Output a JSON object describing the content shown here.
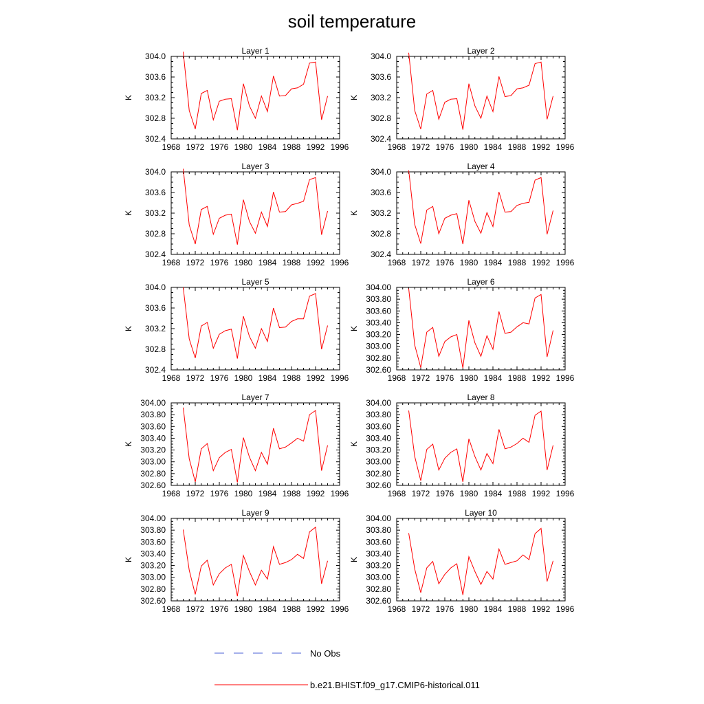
{
  "figure_title": "soil temperature",
  "colors": {
    "model_line": "#ff0000",
    "obs_line": "#4a5fd6",
    "axes": "#000000"
  },
  "legend": {
    "obs_label": "No Obs",
    "model_label": "b.e21.BHIST.f09_g17.CMIP6-historical.011"
  },
  "chart_data": [
    {
      "type": "line",
      "title": "Layer 1",
      "ylabel": "K",
      "xlim": [
        1968,
        1996
      ],
      "x_ticks": [
        "1968",
        "1972",
        "1976",
        "1980",
        "1984",
        "1988",
        "1992",
        "1996"
      ],
      "ylim": [
        302.4,
        304.0
      ],
      "y_ticks": [
        "302.4",
        "302.8",
        "303.2",
        "303.6",
        "304.0"
      ],
      "x": [
        1970,
        1971,
        1972,
        1973,
        1974,
        1975,
        1976,
        1977,
        1978,
        1979,
        1980,
        1981,
        1982,
        1983,
        1984,
        1985,
        1986,
        1987,
        1988,
        1989,
        1990,
        1991,
        1992,
        1993,
        1994
      ],
      "series": [
        {
          "name": "b.e21.BHIST.f09_g17.CMIP6-historical.011",
          "values": [
            304.09,
            302.95,
            302.59,
            303.28,
            303.34,
            302.77,
            303.13,
            303.17,
            303.18,
            302.57,
            303.47,
            303.04,
            302.8,
            303.23,
            302.93,
            303.62,
            303.23,
            303.24,
            303.37,
            303.39,
            303.46,
            303.87,
            303.89,
            302.77,
            303.23
          ]
        }
      ]
    },
    {
      "type": "line",
      "title": "Layer 2",
      "ylabel": "K",
      "xlim": [
        1968,
        1996
      ],
      "x_ticks": [
        "1968",
        "1972",
        "1976",
        "1980",
        "1984",
        "1988",
        "1992",
        "1996"
      ],
      "ylim": [
        302.4,
        304.0
      ],
      "y_ticks": [
        "302.4",
        "302.8",
        "303.2",
        "303.6",
        "304.0"
      ],
      "x": [
        1970,
        1971,
        1972,
        1973,
        1974,
        1975,
        1976,
        1977,
        1978,
        1979,
        1980,
        1981,
        1982,
        1983,
        1984,
        1985,
        1986,
        1987,
        1988,
        1989,
        1990,
        1991,
        1992,
        1993,
        1994
      ],
      "series": [
        {
          "name": "b.e21.BHIST.f09_g17.CMIP6-historical.011",
          "values": [
            304.07,
            302.95,
            302.59,
            303.27,
            303.34,
            302.78,
            303.11,
            303.17,
            303.18,
            302.58,
            303.47,
            303.04,
            302.8,
            303.23,
            302.93,
            303.61,
            303.22,
            303.24,
            303.37,
            303.39,
            303.44,
            303.86,
            303.89,
            302.78,
            303.23
          ]
        }
      ]
    },
    {
      "type": "line",
      "title": "Layer 3",
      "ylabel": "K",
      "xlim": [
        1968,
        1996
      ],
      "x_ticks": [
        "1968",
        "1972",
        "1976",
        "1980",
        "1984",
        "1988",
        "1992",
        "1996"
      ],
      "ylim": [
        302.4,
        304.0
      ],
      "y_ticks": [
        "302.4",
        "302.8",
        "303.2",
        "303.6",
        "304.0"
      ],
      "x": [
        1970,
        1971,
        1972,
        1973,
        1974,
        1975,
        1976,
        1977,
        1978,
        1979,
        1980,
        1981,
        1982,
        1983,
        1984,
        1985,
        1986,
        1987,
        1988,
        1989,
        1990,
        1991,
        1992,
        1993,
        1994
      ],
      "series": [
        {
          "name": "b.e21.BHIST.f09_g17.CMIP6-historical.011",
          "values": [
            304.06,
            302.97,
            302.6,
            303.27,
            303.33,
            302.79,
            303.1,
            303.16,
            303.18,
            302.59,
            303.46,
            303.04,
            302.81,
            303.22,
            302.94,
            303.61,
            303.22,
            303.23,
            303.36,
            303.39,
            303.43,
            303.85,
            303.89,
            302.78,
            303.24
          ]
        }
      ]
    },
    {
      "type": "line",
      "title": "Layer 4",
      "ylabel": "K",
      "xlim": [
        1968,
        1996
      ],
      "x_ticks": [
        "1968",
        "1972",
        "1976",
        "1980",
        "1984",
        "1988",
        "1992",
        "1996"
      ],
      "ylim": [
        302.4,
        304.0
      ],
      "y_ticks": [
        "302.4",
        "302.8",
        "303.2",
        "303.6",
        "304.0"
      ],
      "x": [
        1970,
        1971,
        1972,
        1973,
        1974,
        1975,
        1976,
        1977,
        1978,
        1979,
        1980,
        1981,
        1982,
        1983,
        1984,
        1985,
        1986,
        1987,
        1988,
        1989,
        1990,
        1991,
        1992,
        1993,
        1994
      ],
      "series": [
        {
          "name": "b.e21.BHIST.f09_g17.CMIP6-historical.011",
          "values": [
            304.03,
            302.98,
            302.61,
            303.26,
            303.33,
            302.8,
            303.1,
            303.16,
            303.19,
            302.6,
            303.45,
            303.04,
            302.81,
            303.21,
            302.94,
            303.61,
            303.22,
            303.23,
            303.35,
            303.39,
            303.41,
            303.84,
            303.89,
            302.79,
            303.25
          ]
        }
      ]
    },
    {
      "type": "line",
      "title": "Layer 5",
      "ylabel": "K",
      "xlim": [
        1968,
        1996
      ],
      "x_ticks": [
        "1968",
        "1972",
        "1976",
        "1980",
        "1984",
        "1988",
        "1992",
        "1996"
      ],
      "ylim": [
        302.4,
        304.0
      ],
      "y_ticks": [
        "302.4",
        "302.8",
        "303.2",
        "303.6",
        "304.0"
      ],
      "x": [
        1970,
        1971,
        1972,
        1973,
        1974,
        1975,
        1976,
        1977,
        1978,
        1979,
        1980,
        1981,
        1982,
        1983,
        1984,
        1985,
        1986,
        1987,
        1988,
        1989,
        1990,
        1991,
        1992,
        1993,
        1994
      ],
      "series": [
        {
          "name": "b.e21.BHIST.f09_g17.CMIP6-historical.011",
          "values": [
            304.0,
            303.0,
            302.63,
            303.25,
            303.32,
            302.82,
            303.09,
            303.16,
            303.19,
            302.62,
            303.44,
            303.05,
            302.82,
            303.2,
            302.95,
            303.6,
            303.22,
            303.23,
            303.34,
            303.39,
            303.39,
            303.83,
            303.88,
            302.8,
            303.26
          ]
        }
      ]
    },
    {
      "type": "line",
      "title": "Layer 6",
      "ylabel": "K",
      "xlim": [
        1968,
        1996
      ],
      "x_ticks": [
        "1968",
        "1972",
        "1976",
        "1980",
        "1984",
        "1988",
        "1992",
        "1996"
      ],
      "ylim": [
        302.6,
        304.0
      ],
      "y_ticks": [
        "302.60",
        "302.80",
        "303.00",
        "303.20",
        "303.40",
        "303.60",
        "303.80",
        "304.00"
      ],
      "x": [
        1970,
        1971,
        1972,
        1973,
        1974,
        1975,
        1976,
        1977,
        1978,
        1979,
        1980,
        1981,
        1982,
        1983,
        1984,
        1985,
        1986,
        1987,
        1988,
        1989,
        1990,
        1991,
        1992,
        1993,
        1994
      ],
      "series": [
        {
          "name": "b.e21.BHIST.f09_g17.CMIP6-historical.011",
          "values": [
            303.98,
            303.02,
            302.64,
            303.24,
            303.32,
            302.83,
            303.08,
            303.16,
            303.2,
            302.63,
            303.44,
            303.06,
            302.83,
            303.18,
            302.95,
            303.59,
            303.22,
            303.24,
            303.33,
            303.4,
            303.38,
            303.82,
            303.88,
            302.82,
            303.27
          ]
        }
      ]
    },
    {
      "type": "line",
      "title": "Layer 7",
      "ylabel": "K",
      "xlim": [
        1968,
        1996
      ],
      "x_ticks": [
        "1968",
        "1972",
        "1976",
        "1980",
        "1984",
        "1988",
        "1992",
        "1996"
      ],
      "ylim": [
        302.6,
        304.0
      ],
      "y_ticks": [
        "302.60",
        "302.80",
        "303.00",
        "303.20",
        "303.40",
        "303.60",
        "303.80",
        "304.00"
      ],
      "x": [
        1970,
        1971,
        1972,
        1973,
        1974,
        1975,
        1976,
        1977,
        1978,
        1979,
        1980,
        1981,
        1982,
        1983,
        1984,
        1985,
        1986,
        1987,
        1988,
        1989,
        1990,
        1991,
        1992,
        1993,
        1994
      ],
      "series": [
        {
          "name": "b.e21.BHIST.f09_g17.CMIP6-historical.011",
          "values": [
            303.92,
            303.05,
            302.66,
            303.22,
            303.31,
            302.85,
            303.07,
            303.16,
            303.21,
            302.65,
            303.41,
            303.08,
            302.85,
            303.16,
            302.96,
            303.57,
            303.22,
            303.25,
            303.32,
            303.4,
            303.35,
            303.8,
            303.87,
            302.85,
            303.28
          ]
        }
      ]
    },
    {
      "type": "line",
      "title": "Layer 8",
      "ylabel": "K",
      "xlim": [
        1968,
        1996
      ],
      "x_ticks": [
        "1968",
        "1972",
        "1976",
        "1980",
        "1984",
        "1988",
        "1992",
        "1996"
      ],
      "ylim": [
        302.6,
        304.0
      ],
      "y_ticks": [
        "302.60",
        "302.80",
        "303.00",
        "303.20",
        "303.40",
        "303.60",
        "303.80",
        "304.00"
      ],
      "x": [
        1970,
        1971,
        1972,
        1973,
        1974,
        1975,
        1976,
        1977,
        1978,
        1979,
        1980,
        1981,
        1982,
        1983,
        1984,
        1985,
        1986,
        1987,
        1988,
        1989,
        1990,
        1991,
        1992,
        1993,
        1994
      ],
      "series": [
        {
          "name": "b.e21.BHIST.f09_g17.CMIP6-historical.011",
          "values": [
            303.87,
            303.09,
            302.68,
            303.21,
            303.3,
            302.86,
            303.06,
            303.16,
            303.22,
            302.66,
            303.39,
            303.09,
            302.86,
            303.14,
            302.97,
            303.55,
            303.22,
            303.25,
            303.31,
            303.4,
            303.33,
            303.79,
            303.86,
            302.86,
            303.28
          ]
        }
      ]
    },
    {
      "type": "line",
      "title": "Layer 9",
      "ylabel": "K",
      "xlim": [
        1968,
        1996
      ],
      "x_ticks": [
        "1968",
        "1972",
        "1976",
        "1980",
        "1984",
        "1988",
        "1992",
        "1996"
      ],
      "ylim": [
        302.6,
        304.0
      ],
      "y_ticks": [
        "302.60",
        "302.80",
        "303.00",
        "303.20",
        "303.40",
        "303.60",
        "303.80",
        "304.00"
      ],
      "x": [
        1970,
        1971,
        1972,
        1973,
        1974,
        1975,
        1976,
        1977,
        1978,
        1979,
        1980,
        1981,
        1982,
        1983,
        1984,
        1985,
        1986,
        1987,
        1988,
        1989,
        1990,
        1991,
        1992,
        1993,
        1994
      ],
      "series": [
        {
          "name": "b.e21.BHIST.f09_g17.CMIP6-historical.011",
          "values": [
            303.81,
            303.12,
            302.71,
            303.19,
            303.29,
            302.87,
            303.06,
            303.16,
            303.22,
            302.68,
            303.37,
            303.1,
            302.87,
            303.12,
            302.97,
            303.52,
            303.22,
            303.25,
            303.3,
            303.39,
            303.32,
            303.77,
            303.85,
            302.89,
            303.28
          ]
        }
      ]
    },
    {
      "type": "line",
      "title": "Layer 10",
      "ylabel": "K",
      "xlim": [
        1968,
        1996
      ],
      "x_ticks": [
        "1968",
        "1972",
        "1976",
        "1980",
        "1984",
        "1988",
        "1992",
        "1996"
      ],
      "ylim": [
        302.6,
        304.0
      ],
      "y_ticks": [
        "302.60",
        "302.80",
        "303.00",
        "303.20",
        "303.40",
        "303.60",
        "303.80",
        "304.00"
      ],
      "x": [
        1970,
        1971,
        1972,
        1973,
        1974,
        1975,
        1976,
        1977,
        1978,
        1979,
        1980,
        1981,
        1982,
        1983,
        1984,
        1985,
        1986,
        1987,
        1988,
        1989,
        1990,
        1991,
        1992,
        1993,
        1994
      ],
      "series": [
        {
          "name": "b.e21.BHIST.f09_g17.CMIP6-historical.011",
          "values": [
            303.75,
            303.14,
            302.74,
            303.16,
            303.27,
            302.89,
            303.05,
            303.16,
            303.23,
            302.7,
            303.35,
            303.1,
            302.88,
            303.1,
            302.97,
            303.48,
            303.22,
            303.25,
            303.28,
            303.38,
            303.3,
            303.74,
            303.83,
            302.93,
            303.28
          ]
        }
      ]
    }
  ]
}
